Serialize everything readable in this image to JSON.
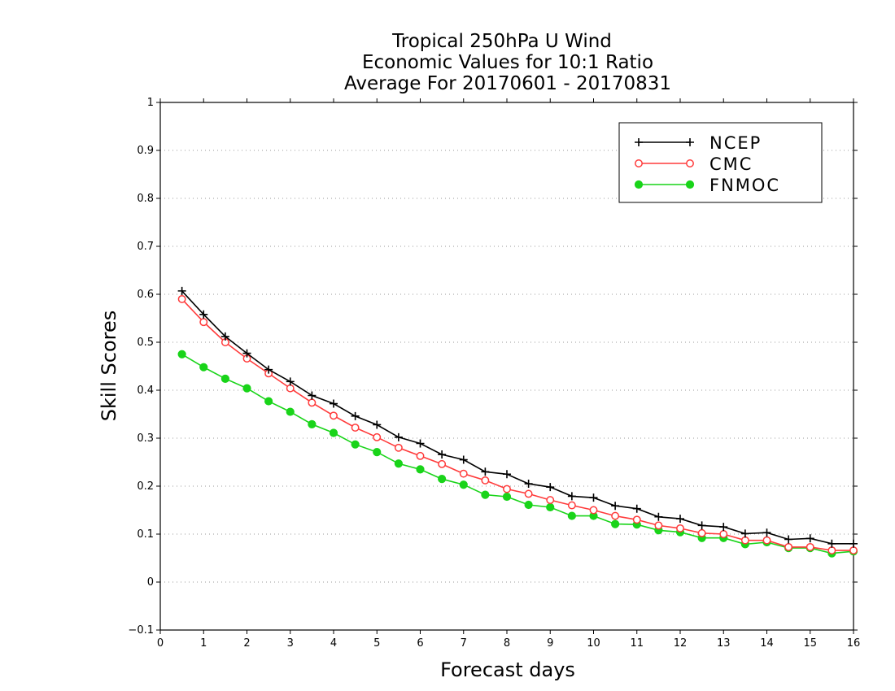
{
  "chart_data": {
    "type": "line",
    "title": [
      "Tropical 250hPa U Wind",
      "Economic Values for 10:1 Ratio",
      "Average For 20170601 - 20170831"
    ],
    "xlabel": "Forecast days",
    "ylabel": "Skill Scores",
    "xlim": [
      0,
      16
    ],
    "ylim": [
      -0.1,
      1
    ],
    "xticks": [
      "0",
      "1",
      "2",
      "3",
      "4",
      "5",
      "6",
      "7",
      "8",
      "9",
      "10",
      "11",
      "12",
      "13",
      "14",
      "15",
      "16"
    ],
    "yticks": [
      "−0.1",
      "0",
      "0.1",
      "0.2",
      "0.3",
      "0.4",
      "0.5",
      "0.6",
      "0.7",
      "0.8",
      "0.9",
      "1"
    ],
    "grid": "horizontal dotted",
    "legend_position": "top-right",
    "x": [
      0.5,
      1,
      1.5,
      2,
      2.5,
      3,
      3.5,
      4,
      4.5,
      5,
      5.5,
      6,
      6.5,
      7,
      7.5,
      8,
      8.5,
      9,
      9.5,
      10,
      10.5,
      11,
      11.5,
      12,
      12.5,
      13,
      13.5,
      14,
      14.5,
      15,
      15.5,
      16
    ],
    "series": [
      {
        "name": "NCEP",
        "color": "#000000",
        "marker": "plus",
        "values": [
          0.607,
          0.558,
          0.512,
          0.477,
          0.443,
          0.418,
          0.389,
          0.372,
          0.346,
          0.328,
          0.302,
          0.289,
          0.266,
          0.255,
          0.23,
          0.225,
          0.205,
          0.198,
          0.179,
          0.176,
          0.159,
          0.153,
          0.136,
          0.132,
          0.118,
          0.115,
          0.101,
          0.103,
          0.089,
          0.091,
          0.08,
          0.08
        ]
      },
      {
        "name": "CMC",
        "color": "#ff3b3b",
        "marker": "open-circle",
        "values": [
          0.59,
          0.542,
          0.5,
          0.466,
          0.435,
          0.404,
          0.374,
          0.347,
          0.322,
          0.302,
          0.28,
          0.263,
          0.246,
          0.226,
          0.212,
          0.194,
          0.184,
          0.171,
          0.16,
          0.15,
          0.138,
          0.13,
          0.118,
          0.112,
          0.102,
          0.1,
          0.087,
          0.087,
          0.073,
          0.073,
          0.066,
          0.066
        ]
      },
      {
        "name": "FNMOC",
        "color": "#19d419",
        "marker": "filled-circle",
        "values": [
          0.475,
          0.448,
          0.424,
          0.404,
          0.377,
          0.355,
          0.329,
          0.311,
          0.287,
          0.271,
          0.247,
          0.235,
          0.215,
          0.203,
          0.182,
          0.178,
          0.161,
          0.156,
          0.138,
          0.138,
          0.121,
          0.12,
          0.108,
          0.104,
          0.092,
          0.092,
          0.079,
          0.083,
          0.071,
          0.071,
          0.06,
          0.064
        ]
      }
    ]
  }
}
